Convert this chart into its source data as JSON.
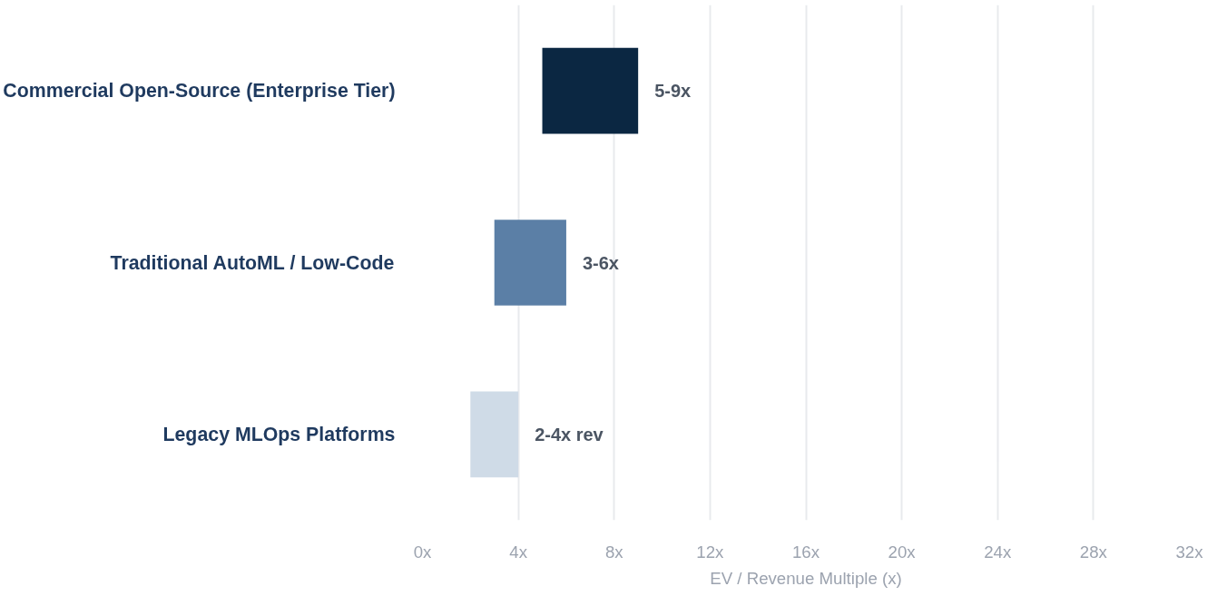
{
  "chart_data": {
    "type": "bar",
    "orientation": "horizontal",
    "xlabel": "EV / Revenue Multiple (x)",
    "categories": [
      "Commercial Open-Source (Enterprise Tier)",
      "Traditional AutoML / Low-Code",
      "Legacy MLOps Platforms"
    ],
    "base": [
      5,
      3,
      2
    ],
    "values": [
      4,
      3,
      2
    ],
    "colors": [
      "#0b2742",
      "#5b7fa6",
      "#cfdbe7"
    ],
    "value_labels": [
      "5-9x",
      "3-6x",
      "2-4x rev"
    ],
    "xlim": [
      0,
      32
    ],
    "xticks": [
      {
        "value": 0,
        "label": "0x"
      },
      {
        "value": 4,
        "label": "4x"
      },
      {
        "value": 8,
        "label": "8x"
      },
      {
        "value": 12,
        "label": "12x"
      },
      {
        "value": 16,
        "label": "16x"
      },
      {
        "value": 20,
        "label": "20x"
      },
      {
        "value": 24,
        "label": "24x"
      },
      {
        "value": 28,
        "label": "28x"
      },
      {
        "value": 32,
        "label": "32x"
      }
    ],
    "grid": "x"
  }
}
